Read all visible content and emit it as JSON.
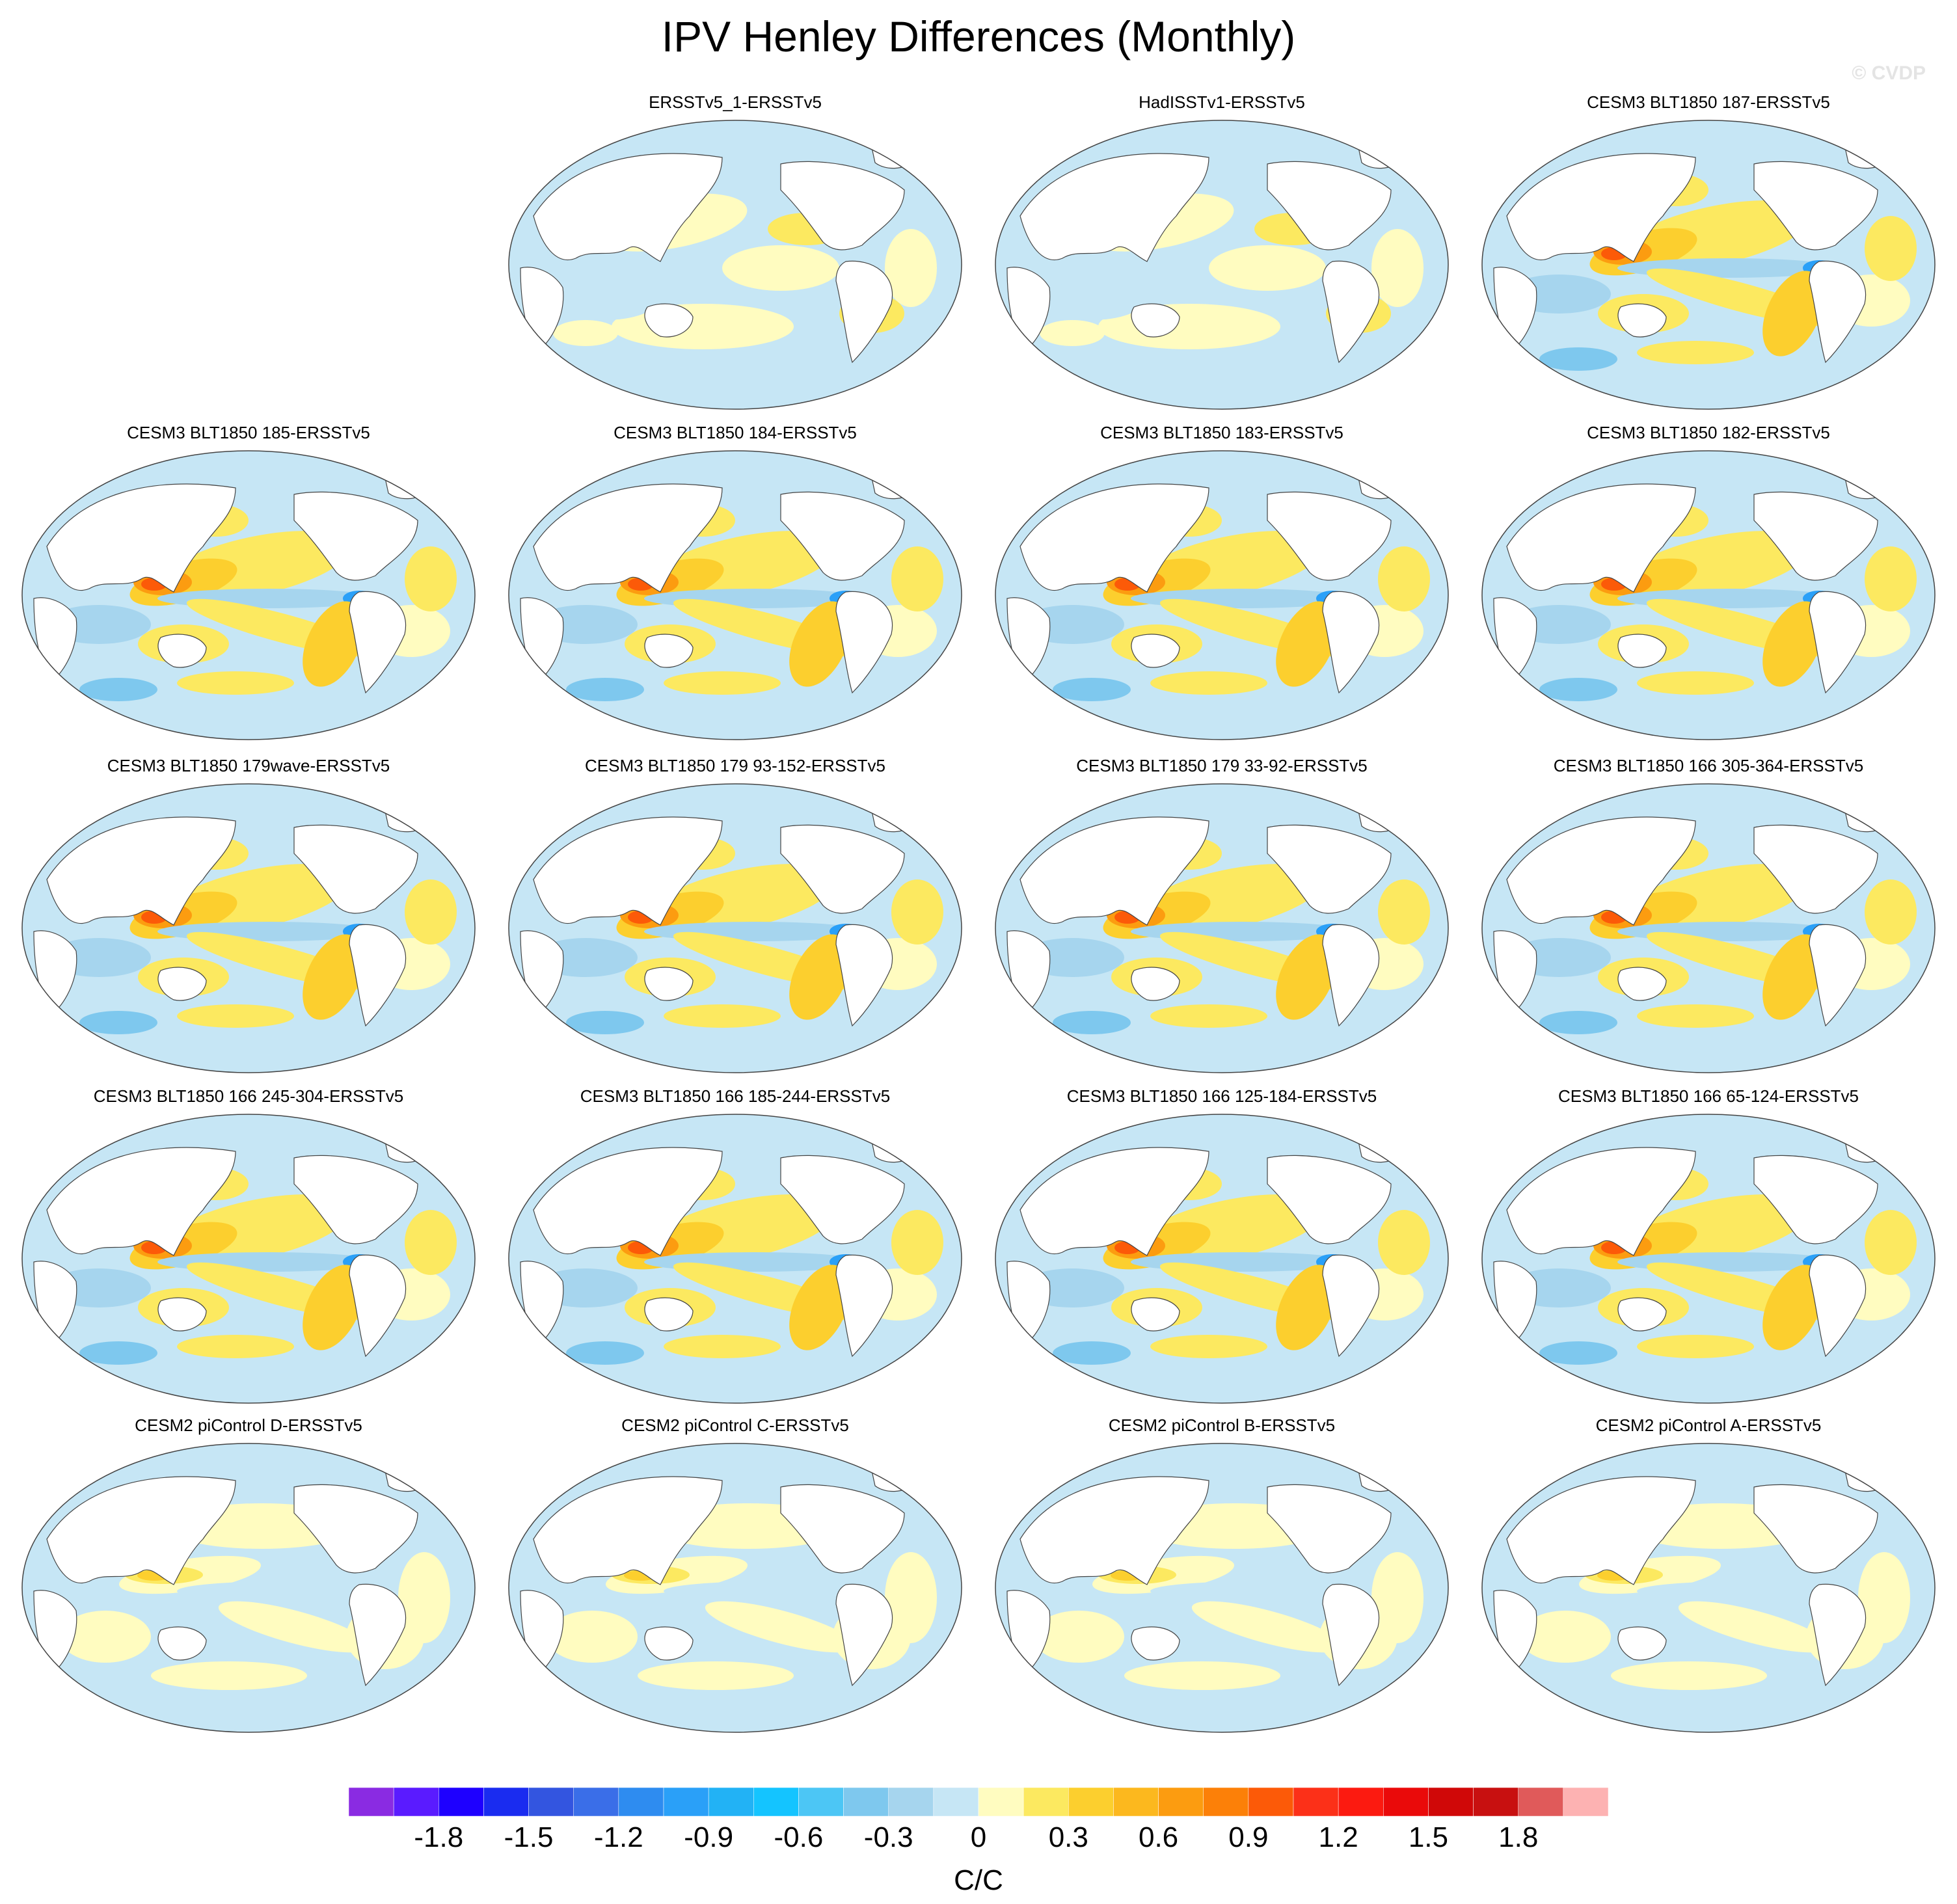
{
  "title": "IPV Henley Differences (Monthly)",
  "watermark": "© CVDP",
  "panels": [
    {
      "title": "ERSSTv5_1-ERSSTv5",
      "style": "weak"
    },
    {
      "title": "HadISSTv1-ERSSTv5",
      "style": "weak"
    },
    {
      "title": "CESM3 BLT1850 187-ERSSTv5",
      "style": "strong"
    },
    {
      "title": "CESM3 BLT1850 185-ERSSTv5",
      "style": "strong"
    },
    {
      "title": "CESM3 BLT1850 184-ERSSTv5",
      "style": "strong"
    },
    {
      "title": "CESM3 BLT1850 183-ERSSTv5",
      "style": "strong"
    },
    {
      "title": "CESM3 BLT1850 182-ERSSTv5",
      "style": "strong"
    },
    {
      "title": "CESM3 BLT1850 179wave-ERSSTv5",
      "style": "strong"
    },
    {
      "title": "CESM3 BLT1850 179 93-152-ERSSTv5",
      "style": "strong"
    },
    {
      "title": "CESM3 BLT1850 179 33-92-ERSSTv5",
      "style": "strong"
    },
    {
      "title": "CESM3 BLT1850 166 305-364-ERSSTv5",
      "style": "strong"
    },
    {
      "title": "CESM3 BLT1850 166 245-304-ERSSTv5",
      "style": "strong"
    },
    {
      "title": "CESM3 BLT1850 166 185-244-ERSSTv5",
      "style": "strong"
    },
    {
      "title": "CESM3 BLT1850 166 125-184-ERSSTv5",
      "style": "strong"
    },
    {
      "title": "CESM3 BLT1850 166 65-124-ERSSTv5",
      "style": "strong"
    },
    {
      "title": "CESM2 piControl D-ERSSTv5",
      "style": "moderate"
    },
    {
      "title": "CESM2 piControl C-ERSSTv5",
      "style": "moderate"
    },
    {
      "title": "CESM2 piControl B-ERSSTv5",
      "style": "moderate"
    },
    {
      "title": "CESM2 piControl A-ERSSTv5",
      "style": "moderate"
    }
  ],
  "colorbar": {
    "units": "C/C",
    "colors": [
      "#8a2be2",
      "#5a1bff",
      "#1e00ff",
      "#1a2cf0",
      "#3355e0",
      "#3a6ee8",
      "#2e8cf0",
      "#2aa0f8",
      "#22b2f5",
      "#14c4ff",
      "#4cc6f5",
      "#7ec8ee",
      "#a6d5ee",
      "#c6e6f5",
      "#fffcc0",
      "#fce960",
      "#fccf2e",
      "#fcb81e",
      "#fc9c10",
      "#fc8008",
      "#fc5a08",
      "#fc3018",
      "#fc1a10",
      "#ea0a0a",
      "#d00808",
      "#c81010",
      "#e05a5a",
      "#fdb2b2"
    ],
    "tick_labels": [
      "-1.8",
      "-1.5",
      "-1.2",
      "-0.9",
      "-0.6",
      "-0.3",
      "0",
      "0.3",
      "0.6",
      "0.9",
      "1.2",
      "1.5",
      "1.8"
    ]
  }
}
